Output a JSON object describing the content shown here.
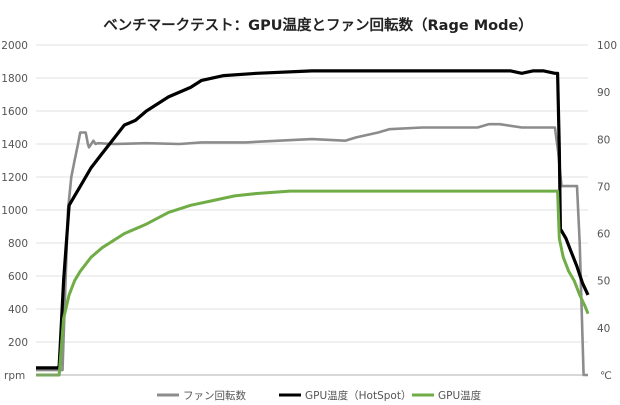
{
  "chart_data": {
    "type": "line",
    "title": "ベンチマークテスト：GPU温度とファン回転数（Rage Mode）",
    "x_range": [
      0,
      1
    ],
    "y_left": {
      "unit_label": "rpm",
      "min": 0,
      "max": 2000,
      "ticks": [
        200,
        400,
        600,
        800,
        1000,
        1200,
        1400,
        1600,
        1800,
        2000
      ]
    },
    "y_right": {
      "unit_label": "℃",
      "min": 30,
      "max": 100,
      "ticks": [
        40,
        50,
        60,
        70,
        80,
        90,
        100
      ]
    },
    "grid": true,
    "legend_position": "bottom",
    "series": [
      {
        "name": "ファン回転数",
        "axis": "left",
        "color": "#8c8c8c",
        "x": [
          0.0,
          0.02,
          0.04,
          0.048,
          0.058,
          0.064,
          0.07,
          0.076,
          0.08,
          0.086,
          0.09,
          0.094,
          0.096,
          0.1,
          0.104,
          0.108,
          0.112,
          0.14,
          0.2,
          0.26,
          0.3,
          0.38,
          0.44,
          0.5,
          0.56,
          0.58,
          0.62,
          0.64,
          0.7,
          0.76,
          0.8,
          0.82,
          0.84,
          0.88,
          0.92,
          0.94,
          0.946,
          0.952,
          0.958,
          0.98,
          0.985,
          0.992,
          1.0
        ],
        "y": [
          30,
          30,
          30,
          30,
          1000,
          1200,
          1300,
          1400,
          1470,
          1470,
          1470,
          1400,
          1380,
          1400,
          1420,
          1400,
          1405,
          1400,
          1405,
          1400,
          1410,
          1410,
          1420,
          1430,
          1420,
          1440,
          1470,
          1490,
          1500,
          1500,
          1500,
          1520,
          1520,
          1500,
          1500,
          1500,
          1350,
          1145,
          1145,
          1145,
          800,
          0,
          0
        ]
      },
      {
        "name": "GPU温度（HotSpot）",
        "axis": "right",
        "color": "#000000",
        "x": [
          0.0,
          0.03,
          0.04,
          0.042,
          0.05,
          0.06,
          0.07,
          0.08,
          0.1,
          0.12,
          0.14,
          0.16,
          0.18,
          0.2,
          0.24,
          0.28,
          0.3,
          0.34,
          0.4,
          0.5,
          0.6,
          0.7,
          0.8,
          0.86,
          0.88,
          0.9,
          0.92,
          0.94,
          0.945,
          0.948,
          0.95,
          0.96,
          0.97,
          0.98,
          0.99,
          1.0
        ],
        "y": [
          31.5,
          31.5,
          31.5,
          32,
          50,
          66,
          68,
          70,
          74,
          77,
          80,
          83,
          84,
          86,
          89,
          91,
          92.5,
          93.5,
          94,
          94.5,
          94.5,
          94.5,
          94.5,
          94.5,
          94,
          94.5,
          94.5,
          94,
          94,
          78,
          61,
          59,
          56,
          53,
          49.5,
          47
        ]
      },
      {
        "name": "GPU温度",
        "axis": "right",
        "color": "#70ad47",
        "x": [
          0.0,
          0.042,
          0.05,
          0.06,
          0.07,
          0.08,
          0.1,
          0.12,
          0.16,
          0.2,
          0.24,
          0.28,
          0.32,
          0.36,
          0.4,
          0.46,
          0.52,
          0.6,
          0.7,
          0.8,
          0.86,
          0.9,
          0.94,
          0.945,
          0.948,
          0.955,
          0.965,
          0.975,
          0.985,
          0.995,
          1.0
        ],
        "y": [
          30,
          30,
          42,
          47,
          50,
          52,
          55,
          57,
          60,
          62,
          64.5,
          66,
          67,
          68,
          68.5,
          69,
          69,
          69,
          69,
          69,
          69,
          69,
          69,
          69,
          59,
          55,
          52,
          50,
          47,
          44.5,
          43
        ]
      }
    ]
  }
}
